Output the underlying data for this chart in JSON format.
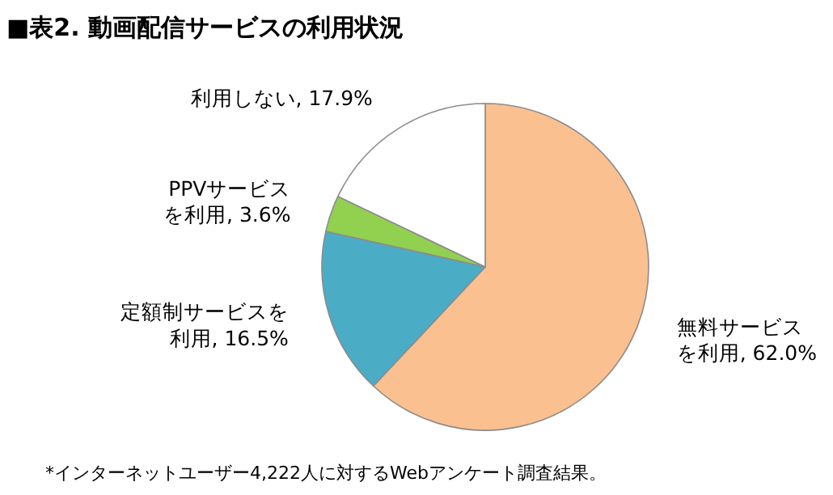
{
  "chart_data": {
    "type": "pie",
    "title": "■表2. 動画配信サービスの利用状況",
    "categories": [
      "無料サービスを利用",
      "定額制サービスを利用",
      "PPVサービスを利用",
      "利用しない"
    ],
    "values": [
      62.0,
      16.5,
      3.6,
      17.9
    ],
    "value_labels": [
      "62.0%",
      "16.5%",
      "3.6%",
      "17.9%"
    ],
    "colors": [
      "#fac090",
      "#4bacc6",
      "#92d050",
      "#ffffff"
    ],
    "legend": false,
    "annotations": [
      "*インターネットユーザー4,222人に対するWebアンケート調査結果。"
    ]
  }
}
